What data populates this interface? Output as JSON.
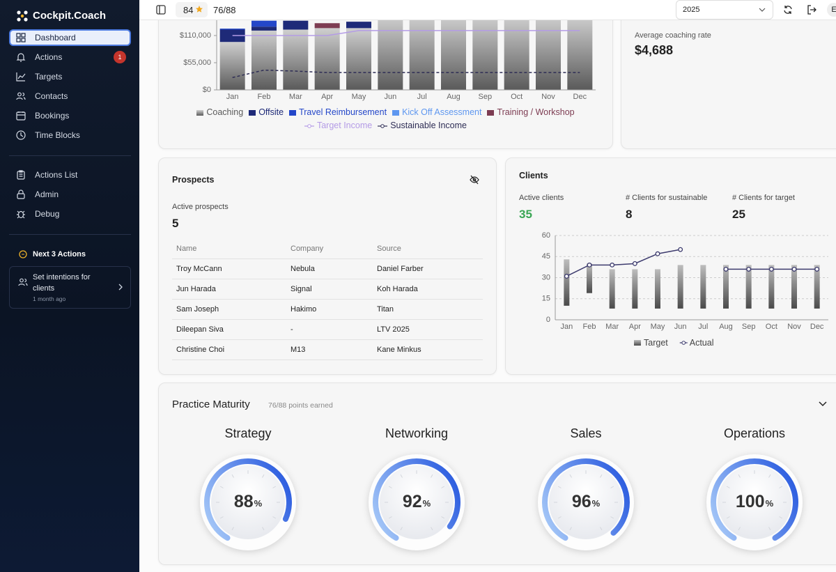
{
  "sidebar": {
    "brand": "Cockpit.Coach",
    "nav": [
      {
        "label": "Dashboard"
      },
      {
        "label": "Actions",
        "badge": 1
      },
      {
        "label": "Targets"
      },
      {
        "label": "Contacts"
      },
      {
        "label": "Bookings"
      },
      {
        "label": "Time Blocks"
      }
    ],
    "nav_secondary": [
      {
        "label": "Actions List"
      },
      {
        "label": "Admin"
      },
      {
        "label": "Debug"
      }
    ],
    "next_actions": {
      "title": "Next 3 Actions",
      "items": [
        {
          "title": "Set intentions for clients",
          "time": "1 month ago"
        }
      ]
    }
  },
  "topbar": {
    "stars": 84,
    "progress": "76/88",
    "year": "2025",
    "avatar": "E"
  },
  "chart_data": [
    {
      "type": "bar",
      "stacked": true,
      "legend": "bottom",
      "grid": false,
      "categories": [
        "Jan",
        "Feb",
        "Mar",
        "Apr",
        "May",
        "Jun",
        "Jul",
        "Aug",
        "Sep",
        "Oct",
        "Nov",
        "Dec"
      ],
      "ylim": [
        0,
        165000
      ],
      "yticks": [
        {
          "value": 0,
          "label": "$0"
        },
        {
          "value": 55000,
          "label": "$55,000"
        },
        {
          "value": 110000,
          "label": "$110,000"
        }
      ],
      "series": [
        {
          "name": "Coaching",
          "color": "#5a5a5a",
          "values": [
            97000,
            120000,
            122000,
            125000,
            125000,
            150000,
            150000,
            150000,
            150000,
            150000,
            150000,
            150000
          ]
        },
        {
          "name": "Offsite",
          "color": "#1e2a78",
          "values": [
            25000,
            8000,
            18000,
            0,
            13000,
            0,
            0,
            0,
            0,
            0,
            0,
            0
          ]
        },
        {
          "name": "Travel Reimbursement",
          "color": "#2447c9",
          "values": [
            2000,
            12000,
            0,
            0,
            0,
            0,
            0,
            0,
            0,
            0,
            0,
            0
          ]
        },
        {
          "name": "Kick Off Assessment",
          "color": "#5e97f0",
          "values": [
            0,
            0,
            0,
            0,
            0,
            0,
            0,
            0,
            0,
            0,
            0,
            0
          ]
        },
        {
          "name": "Training / Workshop",
          "color": "#7d3c52",
          "values": [
            0,
            0,
            0,
            10000,
            0,
            0,
            0,
            0,
            0,
            0,
            0,
            0
          ]
        },
        {
          "name": "Target Income",
          "color": "#b49be6",
          "type": "line",
          "values": [
            110000,
            110000,
            110000,
            110000,
            120000,
            120000,
            120000,
            120000,
            120000,
            120000,
            120000,
            120000
          ]
        },
        {
          "name": "Sustainable Income",
          "color": "#2e2d55",
          "type": "line",
          "dashed": true,
          "values": [
            25000,
            40000,
            38000,
            35000,
            35000,
            35000,
            35000,
            35000,
            35000,
            35000,
            35000,
            35000
          ]
        }
      ]
    },
    {
      "type": "bar",
      "legend": "bottom",
      "grid": true,
      "categories": [
        "Jan",
        "Feb",
        "Mar",
        "Apr",
        "May",
        "Jun",
        "Jul",
        "Aug",
        "Sep",
        "Oct",
        "Nov",
        "Dec"
      ],
      "ylim": [
        0,
        60
      ],
      "yticks": [
        0,
        15,
        30,
        45,
        60
      ],
      "series": [
        {
          "name": "Target",
          "color": "#4a4a4a",
          "low": [
            10,
            19,
            8,
            8,
            8,
            8,
            8,
            8,
            8,
            8,
            8,
            8
          ],
          "high": [
            43,
            40,
            36,
            36,
            36,
            39,
            39,
            39,
            39,
            39,
            39,
            39
          ]
        },
        {
          "name": "Actual",
          "color": "#3d3b6e",
          "type": "line",
          "values": [
            31,
            39,
            39,
            40,
            47,
            50,
            null,
            36,
            36,
            36,
            36,
            36
          ]
        }
      ]
    }
  ],
  "average_rate": {
    "label": "Average coaching rate",
    "value": "$4,688"
  },
  "prospects": {
    "title": "Prospects",
    "stat_label": "Active prospects",
    "stat_value": 5,
    "table": {
      "columns": [
        "Name",
        "Company",
        "Source"
      ],
      "rows": [
        [
          "Troy McCann",
          "Nebula",
          "Daniel Farber"
        ],
        [
          "Jun Harada",
          "Signal",
          "Koh Harada"
        ],
        [
          "Sam Joseph",
          "Hakimo",
          "Titan"
        ],
        [
          "Dileepan Siva",
          "-",
          "LTV 2025"
        ],
        [
          "Christine Choi",
          "M13",
          "Kane Minkus"
        ]
      ]
    }
  },
  "clients": {
    "title": "Clients",
    "stats": [
      {
        "label": "Active clients",
        "value": 35
      },
      {
        "label": "# Clients for sustainable",
        "value": 8
      },
      {
        "label": "# Clients for target",
        "value": 25
      }
    ]
  },
  "practice_maturity": {
    "title": "Practice Maturity",
    "subtitle": "76/88 points earned",
    "unit": "%",
    "gauges": [
      {
        "name": "Strategy",
        "value": 88
      },
      {
        "name": "Networking",
        "value": 92
      },
      {
        "name": "Sales",
        "value": 96
      },
      {
        "name": "Operations",
        "value": 100
      }
    ]
  }
}
